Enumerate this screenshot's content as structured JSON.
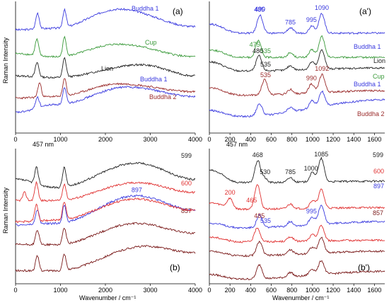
{
  "chart_data": [
    {
      "type": "line",
      "panel_label": "(a)",
      "xlim": [
        0,
        4000
      ],
      "xticks": [
        "0",
        "1000",
        "2000",
        "3000",
        "4000"
      ],
      "xlabel": "",
      "ylabel": "Raman Intensity",
      "series": [
        {
          "name": "Buddha 1",
          "color": "#3a3adf",
          "offset": 6.2,
          "peaks": [
            [
              490,
              1.0
            ],
            [
              1090,
              1.1
            ]
          ],
          "bg": [
            [
              0,
              0.3
            ],
            [
              900,
              0.4
            ],
            [
              2300,
              1.6
            ],
            [
              4000,
              0.5
            ]
          ]
        },
        {
          "name": "Cup",
          "color": "#3a9a3a",
          "offset": 4.6,
          "peaks": [
            [
              475,
              1.0
            ],
            [
              1090,
              1.2
            ]
          ],
          "bg": [
            [
              0,
              0.4
            ],
            [
              900,
              0.2
            ],
            [
              2300,
              1.0
            ],
            [
              4000,
              0.2
            ]
          ]
        },
        {
          "name": "Lion",
          "color": "#222222",
          "offset": 3.2,
          "peaks": [
            [
              480,
              0.9
            ],
            [
              1090,
              1.2
            ]
          ],
          "bg": [
            [
              0,
              0.4
            ],
            [
              900,
              0.3
            ],
            [
              2800,
              1.1
            ],
            [
              4000,
              0.4
            ]
          ]
        },
        {
          "name": "Buddha 1",
          "color": "#3a3adf",
          "offset": 1.1,
          "peaks": [
            [
              485,
              0.7
            ],
            [
              1090,
              1.0
            ]
          ],
          "bg": [
            [
              0,
              0.2
            ],
            [
              900,
              0.7
            ],
            [
              2500,
              1.8
            ],
            [
              4000,
              1.2
            ]
          ]
        },
        {
          "name": "Buddha 2",
          "color": "#9a2a2a",
          "offset": 2.0,
          "peaks": [
            [
              535,
              0.9
            ],
            [
              1092,
              1.1
            ]
          ],
          "bg": [
            [
              0,
              0.2
            ],
            [
              900,
              0.3
            ],
            [
              2300,
              1.1
            ],
            [
              4000,
              0.6
            ]
          ]
        }
      ]
    },
    {
      "type": "line",
      "panel_label": "(a')",
      "xlim": [
        0,
        1700
      ],
      "xticks": [
        "0",
        "200",
        "400",
        "600",
        "800",
        "1000",
        "1200",
        "1400",
        "1600"
      ],
      "xlabel": "",
      "ylabel": "",
      "annotations": [
        {
          "text": "490",
          "x": 490,
          "color": "#3a3adf"
        },
        {
          "text": "475",
          "x": 440,
          "color": "#3a9a3a"
        },
        {
          "text": "535",
          "x": 545,
          "color": "#3a9a3a"
        },
        {
          "text": "785",
          "x": 785,
          "color": "#3a3adf"
        },
        {
          "text": "995",
          "x": 990,
          "color": "#3a3adf"
        },
        {
          "text": "1090",
          "x": 1090,
          "color": "#3a3adf"
        },
        {
          "text": "480",
          "x": 470,
          "color": "#222222"
        },
        {
          "text": "535",
          "x": 545,
          "color": "#222222"
        },
        {
          "text": "535",
          "x": 545,
          "color": "#9a2a2a"
        },
        {
          "text": "990",
          "x": 990,
          "color": "#9a2a2a"
        },
        {
          "text": "1092",
          "x": 1092,
          "color": "#9a2a2a"
        },
        {
          "text": "485",
          "x": 485,
          "color": "#3a3adf"
        }
      ],
      "series": [
        {
          "name": "Buddha 1",
          "color": "#3a3adf",
          "offset": 6.4,
          "peaks": [
            [
              490,
              1.2
            ],
            [
              785,
              0.35
            ],
            [
              995,
              0.5
            ],
            [
              1090,
              1.3
            ]
          ],
          "bg": [
            [
              0,
              0.8
            ],
            [
              300,
              0.2
            ],
            [
              1700,
              0.2
            ]
          ]
        },
        {
          "name": "Cup",
          "color": "#3a9a3a",
          "offset": 4.9,
          "peaks": [
            [
              475,
              1.1
            ],
            [
              785,
              0.3
            ],
            [
              995,
              0.5
            ],
            [
              1090,
              1.4
            ]
          ],
          "bg": [
            [
              0,
              0.6
            ],
            [
              300,
              0.1
            ],
            [
              1700,
              0.1
            ]
          ]
        },
        {
          "name": "Lion",
          "color": "#222222",
          "offset": 4.0,
          "peaks": [
            [
              480,
              1.0
            ],
            [
              785,
              0.3
            ],
            [
              995,
              0.5
            ],
            [
              1090,
              1.3
            ]
          ],
          "bg": [
            [
              0,
              0.7
            ],
            [
              300,
              0.1
            ],
            [
              1700,
              0.3
            ]
          ]
        },
        {
          "name": "Buddha 1",
          "color": "#3a3adf",
          "offset": 1.0,
          "peaks": [
            [
              485,
              0.8
            ],
            [
              785,
              0.3
            ],
            [
              995,
              0.5
            ],
            [
              1090,
              1.0
            ]
          ],
          "bg": [
            [
              0,
              0.5
            ],
            [
              300,
              0.1
            ],
            [
              1700,
              1.2
            ]
          ]
        },
        {
          "name": "Buddha 2",
          "color": "#9a2a2a",
          "offset": 2.4,
          "peaks": [
            [
              535,
              1.0
            ],
            [
              785,
              0.3
            ],
            [
              990,
              0.6
            ],
            [
              1092,
              1.2
            ]
          ],
          "bg": [
            [
              0,
              0.6
            ],
            [
              300,
              0.1
            ],
            [
              1700,
              0.4
            ]
          ]
        }
      ]
    },
    {
      "type": "line",
      "panel_label": "(b)",
      "xlim": [
        0,
        4000
      ],
      "xticks": [
        "0",
        "1000",
        "2000",
        "3000",
        "4000"
      ],
      "xlabel": "Wavenumber / cm⁻¹",
      "ylabel": "Raman Intensity",
      "annotations": [
        {
          "text": "897",
          "x": 2700,
          "color": "#3a3adf"
        }
      ],
      "series": [
        {
          "name": "599",
          "color": "#222222",
          "offset": 5.8,
          "peaks": [
            [
              468,
              1.0
            ],
            [
              1085,
              1.2
            ]
          ],
          "bg": [
            [
              0,
              0.6
            ],
            [
              900,
              0.1
            ],
            [
              2700,
              1.6
            ],
            [
              4000,
              0.6
            ]
          ]
        },
        {
          "name": "600",
          "color": "#e03030",
          "offset": 4.8,
          "peaks": [
            [
              200,
              0.5
            ],
            [
              465,
              1.1
            ],
            [
              1085,
              1.0
            ]
          ],
          "bg": [
            [
              0,
              0.3
            ],
            [
              900,
              0.3
            ],
            [
              2700,
              1.4
            ],
            [
              4000,
              0.8
            ]
          ]
        },
        {
          "name": "897",
          "color": "#3a3adf",
          "offset": 3.3,
          "peaks": [
            [
              485,
              0.9
            ],
            [
              1085,
              1.1
            ]
          ],
          "bg": [
            [
              0,
              0.3
            ],
            [
              900,
              0.4
            ],
            [
              2700,
              2.1
            ],
            [
              4000,
              1.2
            ]
          ]
        },
        {
          "name": "",
          "color": "#e03030",
          "offset": 3.6,
          "peaks": [
            [
              465,
              1.0
            ],
            [
              1085,
              1.1
            ]
          ],
          "bg": [
            [
              0,
              0.2
            ],
            [
              900,
              0.3
            ],
            [
              2700,
              1.6
            ],
            [
              4000,
              0.9
            ]
          ]
        },
        {
          "name": "857",
          "color": "#7a1a1a",
          "offset": 2.1,
          "peaks": [
            [
              485,
              0.9
            ],
            [
              1085,
              1.0
            ]
          ],
          "bg": [
            [
              0,
              0.3
            ],
            [
              900,
              0.3
            ],
            [
              2700,
              1.6
            ],
            [
              4000,
              1.0
            ]
          ]
        },
        {
          "name": "",
          "color": "#7a1a1a",
          "offset": 0.6,
          "peaks": [
            [
              485,
              0.9
            ],
            [
              1085,
              1.0
            ]
          ],
          "bg": [
            [
              0,
              0.2
            ],
            [
              900,
              0.2
            ],
            [
              2900,
              1.7
            ],
            [
              4000,
              1.3
            ]
          ]
        }
      ]
    },
    {
      "type": "line",
      "panel_label": "(b')",
      "xlim": [
        0,
        1700
      ],
      "xticks": [
        "0",
        "200",
        "400",
        "600",
        "800",
        "1000",
        "1200",
        "1400",
        "1600"
      ],
      "xlabel": "Wavenumber / cm⁻¹",
      "ylabel": "",
      "annotations": [
        {
          "text": "468",
          "x": 468,
          "color": "#222222"
        },
        {
          "text": "530",
          "x": 540,
          "color": "#222222"
        },
        {
          "text": "465",
          "x": 410,
          "color": "#e03030"
        },
        {
          "text": "200",
          "x": 200,
          "color": "#e03030"
        },
        {
          "text": "785",
          "x": 785,
          "color": "#222222"
        },
        {
          "text": "1000",
          "x": 985,
          "color": "#222222"
        },
        {
          "text": "1085",
          "x": 1085,
          "color": "#222222"
        },
        {
          "text": "535",
          "x": 545,
          "color": "#3a3adf"
        },
        {
          "text": "995",
          "x": 990,
          "color": "#3a3adf"
        },
        {
          "text": "485",
          "x": 485,
          "color": "#9a2a2a"
        }
      ],
      "series": [
        {
          "name": "599",
          "color": "#222222",
          "offset": 6.3,
          "peaks": [
            [
              468,
              1.4
            ],
            [
              530,
              0.3
            ],
            [
              785,
              0.3
            ],
            [
              1000,
              0.6
            ],
            [
              1085,
              1.5
            ]
          ],
          "bg": [
            [
              0,
              1.0
            ],
            [
              300,
              0.2
            ],
            [
              1700,
              0.3
            ]
          ]
        },
        {
          "name": "600",
          "color": "#e03030",
          "offset": 4.6,
          "peaks": [
            [
              200,
              0.6
            ],
            [
              465,
              1.6
            ],
            [
              785,
              0.3
            ],
            [
              1000,
              0.5
            ],
            [
              1085,
              1.2
            ]
          ],
          "bg": [
            [
              0,
              0.6
            ],
            [
              300,
              0.2
            ],
            [
              1700,
              0.3
            ]
          ]
        },
        {
          "name": "897",
          "color": "#3a3adf",
          "offset": 3.5,
          "peaks": [
            [
              485,
              0.8
            ],
            [
              785,
              0.3
            ],
            [
              995,
              0.5
            ],
            [
              1085,
              1.2
            ]
          ],
          "bg": [
            [
              0,
              0.4
            ],
            [
              300,
              0.1
            ],
            [
              1700,
              0.5
            ]
          ]
        },
        {
          "name": "",
          "color": "#e03030",
          "offset": 2.6,
          "peaks": [
            [
              465,
              0.9
            ],
            [
              785,
              0.3
            ],
            [
              1000,
              0.4
            ],
            [
              1085,
              1.0
            ]
          ],
          "bg": [
            [
              0,
              0.4
            ],
            [
              300,
              0.1
            ],
            [
              1700,
              0.2
            ]
          ]
        },
        {
          "name": "857",
          "color": "#7a1a1a",
          "offset": 1.7,
          "peaks": [
            [
              485,
              0.9
            ],
            [
              785,
              0.3
            ],
            [
              995,
              0.4
            ],
            [
              1085,
              1.0
            ]
          ],
          "bg": [
            [
              0,
              0.4
            ],
            [
              300,
              0.1
            ],
            [
              1700,
              0.4
            ]
          ]
        },
        {
          "name": "",
          "color": "#7a1a1a",
          "offset": 0.2,
          "peaks": [
            [
              485,
              0.9
            ],
            [
              785,
              0.3
            ],
            [
              995,
              0.4
            ],
            [
              1085,
              0.9
            ]
          ],
          "bg": [
            [
              0,
              0.4
            ],
            [
              300,
              0.1
            ],
            [
              1700,
              0.6
            ]
          ]
        }
      ]
    }
  ],
  "label_457": "457  nm",
  "series_labels": {
    "a": [
      "Buddha 1",
      "Cup",
      "Lion",
      "Buddha 1",
      "Buddha 2"
    ],
    "a2": [
      "Buddha 1",
      "Lion",
      "Cup",
      "Buddha 1",
      "Buddha 2"
    ],
    "b": [
      "599",
      "600",
      "857"
    ],
    "b2": [
      "599",
      "600",
      "897",
      "857"
    ]
  }
}
